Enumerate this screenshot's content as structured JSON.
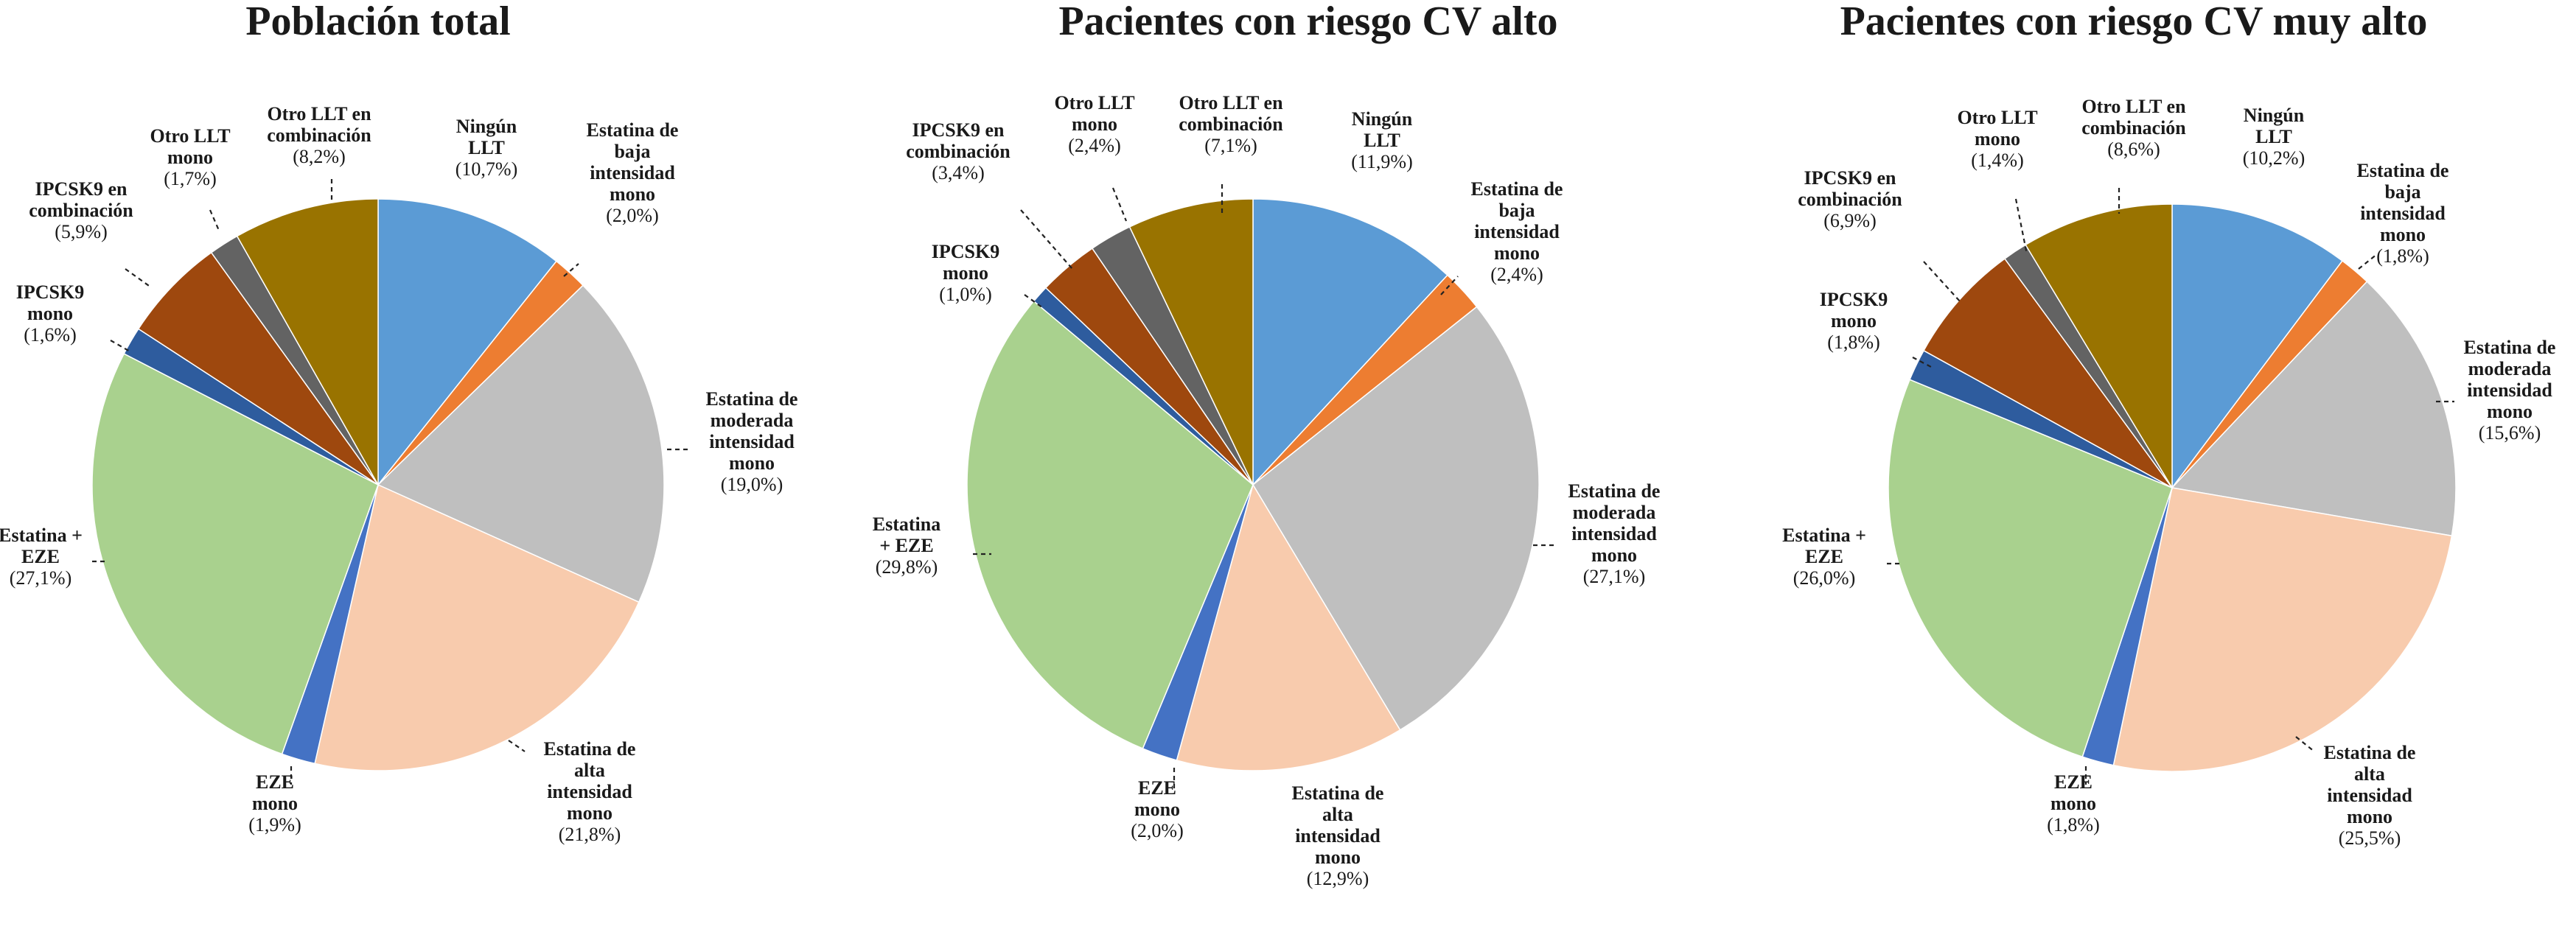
{
  "colors": {
    "ningun": "#5B9BD5",
    "baja": "#ED7D31",
    "moderada": "#BFBFBF",
    "alta": "#F8CBAD",
    "eze_mono": "#4472C4",
    "estatina_eze": "#A9D18E",
    "ipcsk9_mono": "#2E5C9E",
    "ipcsk9_comb": "#9E480E",
    "otro_mono": "#636363",
    "otro_comb": "#997300"
  },
  "chart_data": [
    {
      "type": "pie",
      "title": "Población total",
      "slices": [
        {
          "key": "ningun",
          "name": [
            "Ningún",
            "LLT"
          ],
          "pct": "(10,7%)",
          "value": 10.7
        },
        {
          "key": "baja",
          "name": [
            "Estatina de",
            "baja",
            "intensidad",
            "mono"
          ],
          "pct": "(2,0%)",
          "value": 2.0
        },
        {
          "key": "moderada",
          "name": [
            "Estatina de",
            "moderada",
            "intensidad",
            "mono"
          ],
          "pct": "(19,0%)",
          "value": 19.0
        },
        {
          "key": "alta",
          "name": [
            "Estatina de",
            "alta",
            "intensidad",
            "mono"
          ],
          "pct": "(21,8%)",
          "value": 21.8
        },
        {
          "key": "eze_mono",
          "name": [
            "EZE",
            "mono"
          ],
          "pct": "(1,9%)",
          "value": 1.9
        },
        {
          "key": "estatina_eze",
          "name": [
            "Estatina +",
            "EZE"
          ],
          "pct": "(27,1%)",
          "value": 27.1
        },
        {
          "key": "ipcsk9_mono",
          "name": [
            "IPCSK9",
            "mono"
          ],
          "pct": "(1,6%)",
          "value": 1.6
        },
        {
          "key": "ipcsk9_comb",
          "name": [
            "IPCSK9 en",
            "combinación"
          ],
          "pct": "(5,9%)",
          "value": 5.9
        },
        {
          "key": "otro_mono",
          "name": [
            "Otro LLT",
            "mono"
          ],
          "pct": "(1,7%)",
          "value": 1.7
        },
        {
          "key": "otro_comb",
          "name": [
            "Otro LLT en",
            "combinación"
          ],
          "pct": "(8,2%)",
          "value": 8.2
        }
      ]
    },
    {
      "type": "pie",
      "title": "Pacientes con riesgo CV alto",
      "slices": [
        {
          "key": "ningun",
          "name": [
            "Ningún",
            "LLT"
          ],
          "pct": "(11,9%)",
          "value": 11.9
        },
        {
          "key": "baja",
          "name": [
            "Estatina de",
            "baja",
            "intensidad",
            "mono"
          ],
          "pct": "(2,4%)",
          "value": 2.4
        },
        {
          "key": "moderada",
          "name": [
            "Estatina de",
            "moderada",
            "intensidad",
            "mono"
          ],
          "pct": "(27,1%)",
          "value": 27.1
        },
        {
          "key": "alta",
          "name": [
            "Estatina de",
            "alta",
            "intensidad",
            "mono"
          ],
          "pct": "(12,9%)",
          "value": 12.9
        },
        {
          "key": "eze_mono",
          "name": [
            "EZE",
            "mono"
          ],
          "pct": "(2,0%)",
          "value": 2.0
        },
        {
          "key": "estatina_eze",
          "name": [
            "Estatina",
            "+ EZE"
          ],
          "pct": "(29,8%)",
          "value": 29.8
        },
        {
          "key": "ipcsk9_mono",
          "name": [
            "IPCSK9",
            "mono"
          ],
          "pct": "(1,0%)",
          "value": 1.0
        },
        {
          "key": "ipcsk9_comb",
          "name": [
            "IPCSK9 en",
            "combinación"
          ],
          "pct": "(3,4%)",
          "value": 3.4
        },
        {
          "key": "otro_mono",
          "name": [
            "Otro LLT",
            "mono"
          ],
          "pct": "(2,4%)",
          "value": 2.4
        },
        {
          "key": "otro_comb",
          "name": [
            "Otro LLT en",
            "combinación"
          ],
          "pct": "(7,1%)",
          "value": 7.1
        }
      ]
    },
    {
      "type": "pie",
      "title": "Pacientes con riesgo CV muy alto",
      "slices": [
        {
          "key": "ningun",
          "name": [
            "Ningún",
            "LLT"
          ],
          "pct": "(10,2%)",
          "value": 10.2
        },
        {
          "key": "baja",
          "name": [
            "Estatina de",
            "baja",
            "intensidad",
            "mono"
          ],
          "pct": "(1,8%)",
          "value": 1.8
        },
        {
          "key": "moderada",
          "name": [
            "Estatina de",
            "moderada",
            "intensidad",
            "mono"
          ],
          "pct": "(15,6%)",
          "value": 15.6
        },
        {
          "key": "alta",
          "name": [
            "Estatina de",
            "alta",
            "intensidad",
            "mono"
          ],
          "pct": "(25,5%)",
          "value": 25.5
        },
        {
          "key": "eze_mono",
          "name": [
            "EZE",
            "mono"
          ],
          "pct": "(1,8%)",
          "value": 1.8
        },
        {
          "key": "estatina_eze",
          "name": [
            "Estatina +",
            "EZE"
          ],
          "pct": "(26,0%)",
          "value": 26.0
        },
        {
          "key": "ipcsk9_mono",
          "name": [
            "IPCSK9",
            "mono"
          ],
          "pct": "(1,8%)",
          "value": 1.8
        },
        {
          "key": "ipcsk9_comb",
          "name": [
            "IPCSK9 en",
            "combinación"
          ],
          "pct": "(6,9%)",
          "value": 6.9
        },
        {
          "key": "otro_mono",
          "name": [
            "Otro LLT",
            "mono"
          ],
          "pct": "(1,4%)",
          "value": 1.4
        },
        {
          "key": "otro_comb",
          "name": [
            "Otro LLT en",
            "combinación"
          ],
          "pct": "(8,6%)",
          "value": 8.6
        }
      ]
    }
  ]
}
